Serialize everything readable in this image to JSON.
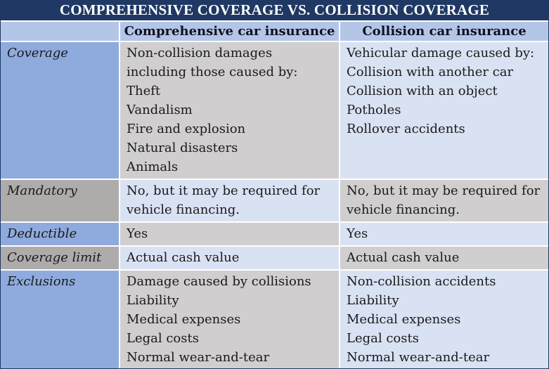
{
  "title": "COMPREHENSIVE COVERAGE VS. COLLISION COVERAGE",
  "columns": {
    "comprehensive": "Comprehensive car insurance",
    "collision": "Collision car insurance"
  },
  "rows": [
    {
      "label": "Coverage",
      "comprehensive": [
        "Non-collision damages",
        "including those caused by:",
        "Theft",
        "Vandalism",
        "Fire and explosion",
        "Natural disasters",
        "Animals"
      ],
      "collision": [
        "Vehicular damage caused by:",
        "Collision with another car",
        "Collision with an object",
        "Potholes",
        "Rollover accidents"
      ]
    },
    {
      "label": "Mandatory",
      "comprehensive": [
        "No, but it may be required for",
        "vehicle financing."
      ],
      "collision": [
        "No, but it may be required for",
        "vehicle financing."
      ]
    },
    {
      "label": "Deductible",
      "comprehensive": [
        "Yes"
      ],
      "collision": [
        "Yes"
      ]
    },
    {
      "label": "Coverage limit",
      "comprehensive": [
        "Actual cash value"
      ],
      "collision": [
        "Actual cash value"
      ]
    },
    {
      "label": "Exclusions",
      "comprehensive": [
        "Damage caused by collisions",
        "Liability",
        "Medical expenses",
        "Legal costs",
        "Normal wear-and-tear"
      ],
      "collision": [
        "Non-collision accidents",
        "Liability",
        "Medical expenses",
        "Legal costs",
        "Normal wear-and-tear"
      ]
    }
  ],
  "colors": {
    "title_bg": "#1F3864",
    "title_text": "#FFFFFF",
    "header_bg": "#B4C6E7",
    "label_blue": "#8FAADC",
    "label_gray": "#AEABAB",
    "cell_gray": "#D0CECE",
    "cell_blue": "#D9E2F3",
    "text": "#1A1A1A",
    "gutter": "#FFFFFF"
  }
}
